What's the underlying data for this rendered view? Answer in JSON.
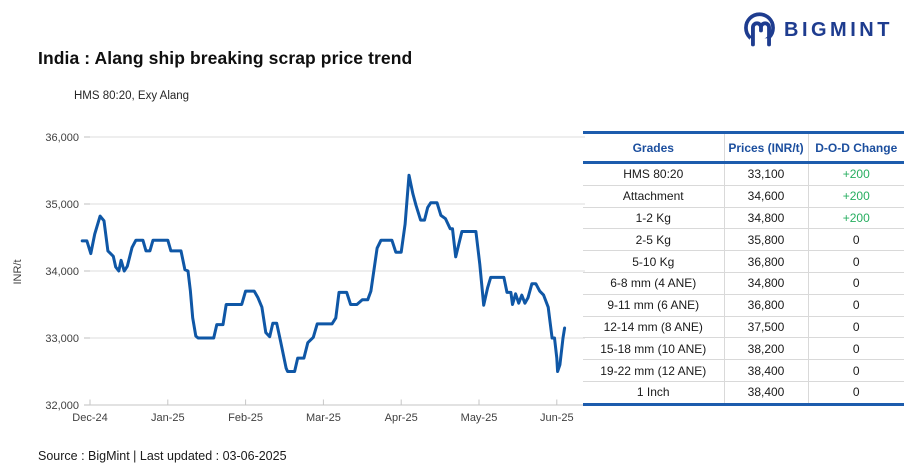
{
  "logo": {
    "brand": "BIGMINT",
    "icon": "bigmint-m-icon",
    "color": "#1e3c8f"
  },
  "header": {
    "title": "India : Alang ship breaking scrap price trend"
  },
  "legend": {
    "label": "HMS 80:20, Exy Alang",
    "swatch_color": "#0f57a6"
  },
  "chart_data": {
    "type": "line",
    "title": "India : Alang ship breaking scrap price trend",
    "series_name": "HMS 80:20, Exy Alang",
    "xlabel": "",
    "ylabel": "INR/t",
    "ylim": [
      32000,
      36000
    ],
    "grid": "horizontal",
    "legend_position": "top-left",
    "line_color": "#0f57a6",
    "gridline_color": "#dcdcdc",
    "axis_color": "#c6c6c6",
    "y_ticks": [
      {
        "label": "36,000",
        "value": 36000
      },
      {
        "label": "35,000",
        "value": 35000
      },
      {
        "label": "34,000",
        "value": 34000
      },
      {
        "label": "33,000",
        "value": 33000
      },
      {
        "label": "32,000",
        "value": 32000
      }
    ],
    "x_ticks": [
      "Dec-24",
      "Jan-25",
      "Feb-25",
      "Mar-25",
      "Apr-25",
      "May-25",
      "Jun-25"
    ],
    "x_unit": "months_from_Dec-24_tick",
    "points": [
      [
        -0.1,
        34450
      ],
      [
        -0.04,
        34450
      ],
      [
        0.01,
        34260
      ],
      [
        0.06,
        34550
      ],
      [
        0.13,
        34820
      ],
      [
        0.18,
        34750
      ],
      [
        0.23,
        34300
      ],
      [
        0.3,
        34220
      ],
      [
        0.33,
        34060
      ],
      [
        0.37,
        34000
      ],
      [
        0.4,
        34160
      ],
      [
        0.44,
        34000
      ],
      [
        0.48,
        34070
      ],
      [
        0.54,
        34350
      ],
      [
        0.59,
        34460
      ],
      [
        0.68,
        34460
      ],
      [
        0.72,
        34300
      ],
      [
        0.77,
        34300
      ],
      [
        0.81,
        34460
      ],
      [
        1.0,
        34460
      ],
      [
        1.04,
        34300
      ],
      [
        1.17,
        34300
      ],
      [
        1.22,
        34020
      ],
      [
        1.26,
        34000
      ],
      [
        1.29,
        33700
      ],
      [
        1.32,
        33300
      ],
      [
        1.36,
        33030
      ],
      [
        1.39,
        33000
      ],
      [
        1.59,
        33000
      ],
      [
        1.63,
        33200
      ],
      [
        1.71,
        33200
      ],
      [
        1.75,
        33500
      ],
      [
        1.95,
        33500
      ],
      [
        2.0,
        33700
      ],
      [
        2.11,
        33700
      ],
      [
        2.16,
        33600
      ],
      [
        2.21,
        33460
      ],
      [
        2.26,
        33080
      ],
      [
        2.31,
        33020
      ],
      [
        2.35,
        33220
      ],
      [
        2.4,
        33220
      ],
      [
        2.45,
        32950
      ],
      [
        2.52,
        32550
      ],
      [
        2.54,
        32500
      ],
      [
        2.63,
        32500
      ],
      [
        2.67,
        32700
      ],
      [
        2.75,
        32700
      ],
      [
        2.8,
        32930
      ],
      [
        2.87,
        33010
      ],
      [
        2.92,
        33210
      ],
      [
        3.11,
        33210
      ],
      [
        3.16,
        33300
      ],
      [
        3.2,
        33680
      ],
      [
        3.3,
        33680
      ],
      [
        3.35,
        33500
      ],
      [
        3.43,
        33500
      ],
      [
        3.5,
        33570
      ],
      [
        3.57,
        33570
      ],
      [
        3.61,
        33700
      ],
      [
        3.69,
        34340
      ],
      [
        3.74,
        34460
      ],
      [
        3.88,
        34460
      ],
      [
        3.93,
        34280
      ],
      [
        4.0,
        34280
      ],
      [
        4.05,
        34700
      ],
      [
        4.1,
        35430
      ],
      [
        4.15,
        35150
      ],
      [
        4.19,
        34980
      ],
      [
        4.25,
        34760
      ],
      [
        4.3,
        34760
      ],
      [
        4.34,
        34950
      ],
      [
        4.38,
        35020
      ],
      [
        4.46,
        35020
      ],
      [
        4.51,
        34830
      ],
      [
        4.57,
        34780
      ],
      [
        4.63,
        34630
      ],
      [
        4.66,
        34630
      ],
      [
        4.7,
        34210
      ],
      [
        4.74,
        34400
      ],
      [
        4.78,
        34590
      ],
      [
        4.96,
        34590
      ],
      [
        5.01,
        34100
      ],
      [
        5.06,
        33490
      ],
      [
        5.11,
        33750
      ],
      [
        5.15,
        33905
      ],
      [
        5.32,
        33905
      ],
      [
        5.36,
        33680
      ],
      [
        5.41,
        33680
      ],
      [
        5.43,
        33500
      ],
      [
        5.47,
        33660
      ],
      [
        5.51,
        33520
      ],
      [
        5.55,
        33640
      ],
      [
        5.59,
        33520
      ],
      [
        5.63,
        33600
      ],
      [
        5.68,
        33810
      ],
      [
        5.73,
        33810
      ],
      [
        5.78,
        33700
      ],
      [
        5.83,
        33640
      ],
      [
        5.89,
        33460
      ],
      [
        5.91,
        33270
      ],
      [
        5.94,
        33000
      ],
      [
        5.97,
        33000
      ],
      [
        6.0,
        32700
      ],
      [
        6.01,
        32500
      ],
      [
        6.04,
        32600
      ],
      [
        6.08,
        33000
      ],
      [
        6.1,
        33150
      ]
    ]
  },
  "table": {
    "headers": [
      "Grades",
      "Prices (INR/t)",
      "D-O-D Change"
    ],
    "positive_color": "#27ae60",
    "header_color": "#1b4e9e",
    "rows": [
      {
        "grade": "HMS 80:20",
        "price": "33,100",
        "change": "+200",
        "positive": true
      },
      {
        "grade": "Attachment",
        "price": "34,600",
        "change": "+200",
        "positive": true
      },
      {
        "grade": "1-2 Kg",
        "price": "34,800",
        "change": "+200",
        "positive": true
      },
      {
        "grade": "2-5 Kg",
        "price": "35,800",
        "change": "0",
        "positive": false
      },
      {
        "grade": "5-10 Kg",
        "price": "36,800",
        "change": "0",
        "positive": false
      },
      {
        "grade": "6-8 mm (4 ANE)",
        "price": "34,800",
        "change": "0",
        "positive": false
      },
      {
        "grade": "9-11 mm (6 ANE)",
        "price": "36,800",
        "change": "0",
        "positive": false
      },
      {
        "grade": "12-14 mm (8 ANE)",
        "price": "37,500",
        "change": "0",
        "positive": false
      },
      {
        "grade": "15-18 mm (10 ANE)",
        "price": "38,200",
        "change": "0",
        "positive": false
      },
      {
        "grade": "19-22 mm (12 ANE)",
        "price": "38,400",
        "change": "0",
        "positive": false
      },
      {
        "grade": "1 Inch",
        "price": "38,400",
        "change": "0",
        "positive": false
      }
    ]
  },
  "footer": {
    "text": "Source : BigMint | Last updated : 03-06-2025"
  }
}
